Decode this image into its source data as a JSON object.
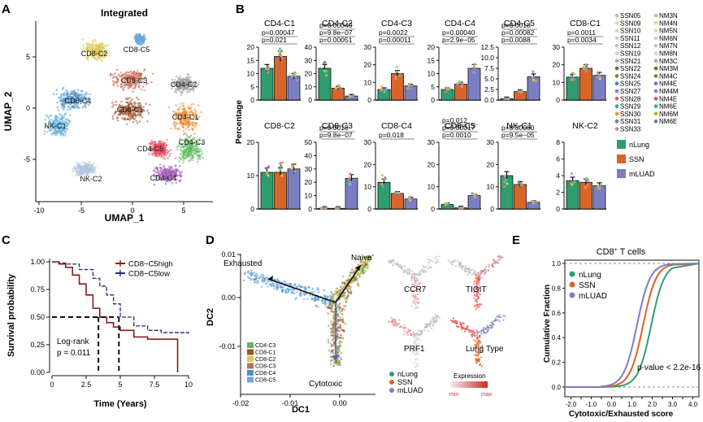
{
  "panels": {
    "A": {
      "letter": "A",
      "title": "Integrated",
      "xlabel": "UMAP_1",
      "ylabel": "UMAP_2",
      "xticks": [
        "-10",
        "-5",
        "0",
        "5"
      ],
      "yticks": [
        "5",
        "0",
        "-5"
      ],
      "clusters": [
        {
          "label": "CD8-C2",
          "color": "#d9c94c"
        },
        {
          "label": "CD8-C5",
          "color": "#6fa8dc"
        },
        {
          "label": "CD8-C3",
          "color": "#c8684c"
        },
        {
          "label": "CD4-C2",
          "color": "#9a9a9a"
        },
        {
          "label": "CD8-C4",
          "color": "#4a90c8"
        },
        {
          "label": "CD8-C1",
          "color": "#a0522d"
        },
        {
          "label": "CD4-C1",
          "color": "#f08a30"
        },
        {
          "label": "NK-C1",
          "color": "#62b0d8"
        },
        {
          "label": "CD4-C5",
          "color": "#e84a5f"
        },
        {
          "label": "CD4-C3",
          "color": "#5cb85c"
        },
        {
          "label": "NK-C2",
          "color": "#b0c4de"
        },
        {
          "label": "CD4-C4",
          "color": "#9b59b6"
        }
      ]
    },
    "B": {
      "letter": "B",
      "ylabel": "Percentage",
      "group_colors": {
        "nLung": "#2e9e6e",
        "SSN": "#d9642a",
        "mLUAD": "#7b7ec2"
      },
      "legend_groups": [
        "nLung",
        "SSN",
        "mLUAD"
      ],
      "samples": [
        "SSN05",
        "SSN09",
        "SSN10",
        "SSN11",
        "SSN12",
        "SSN19",
        "SSN21",
        "SSN22",
        "SSN24",
        "SSN25",
        "SSN27",
        "SSN28",
        "SSN29",
        "SSN30",
        "SSN31",
        "SSN33",
        "NM3N",
        "NM4N",
        "NM5N",
        "NM6N",
        "NM7N",
        "NM8N",
        "NM3C",
        "NM3M",
        "NM4C",
        "NM4E",
        "NM4M",
        "NM4E",
        "NM6E",
        "NM6M",
        "NM6E"
      ],
      "subpanels": [
        {
          "title": "CD4-C1",
          "yticks": [
            "0",
            "5",
            "10",
            "15",
            "20"
          ],
          "ymax": 20,
          "values": [
            12,
            16.5,
            9
          ],
          "pvals": [
            "p=0.00047",
            "p=0.021"
          ]
        },
        {
          "title": "CD4-C2",
          "yticks": [
            "0",
            "10",
            "20",
            "30",
            "40"
          ],
          "ymax": 40,
          "values": [
            24,
            9,
            3
          ],
          "pvals": [
            "p=0.00040",
            "p=9.8e−07",
            "p=0.00051"
          ]
        },
        {
          "title": "CD4-C3",
          "yticks": [
            "0",
            "10",
            "20",
            "30"
          ],
          "ymax": 30,
          "values": [
            6,
            15,
            8
          ],
          "pvals": [
            "p=0.0022",
            "p=0.00011"
          ]
        },
        {
          "title": "CD4-C4",
          "yticks": [
            "0",
            "5",
            "10",
            "15",
            "20"
          ],
          "ymax": 20,
          "values": [
            4,
            6,
            12
          ],
          "pvals": [
            "p=0.00040",
            "p=2.9e−05"
          ]
        },
        {
          "title": "CD4-C5",
          "yticks": [
            "0.0",
            "2.5",
            "5.0",
            "7.5",
            "10.0",
            "12.5"
          ],
          "ymax": 12.5,
          "values": [
            0.3,
            2,
            5.5
          ],
          "pvals": [
            "p=0.0018",
            "p=0.00082",
            "p=0.0088"
          ]
        },
        {
          "title": "CD8-C1",
          "yticks": [
            "0",
            "10",
            "20",
            "30"
          ],
          "ymax": 30,
          "values": [
            13,
            18,
            14
          ],
          "pvals": [
            "p=0.0011",
            "p=0.0034"
          ]
        },
        {
          "title": "CD8-C2",
          "yticks": [
            "0",
            "10",
            "20"
          ],
          "ymax": 20,
          "values": [
            11,
            11,
            12
          ],
          "pvals": []
        },
        {
          "title": "CD8-C3",
          "yticks": [
            "0",
            "10",
            "20",
            "30",
            "40",
            "50"
          ],
          "ymax": 50,
          "values": [
            0.5,
            0.5,
            23
          ],
          "pvals": [
            "p=0.0018",
            "p=9.8e−07"
          ]
        },
        {
          "title": "CD8-C4",
          "yticks": [
            "0",
            "10",
            "20",
            "30"
          ],
          "ymax": 30,
          "values": [
            12,
            7,
            4.5
          ],
          "pvals": [
            "p=0.018"
          ]
        },
        {
          "title": "CD8-C5",
          "yticks": [
            "0",
            "10",
            "20",
            "30"
          ],
          "ymax": 30,
          "values": [
            2,
            0.5,
            6
          ],
          "pvals": [
            "p=0.012",
            "p=0.00017",
            "p=0.0010"
          ]
        },
        {
          "title": "NK-C1",
          "yticks": [
            "0",
            "10",
            "20",
            "30"
          ],
          "ymax": 30,
          "values": [
            15,
            11,
            3
          ],
          "pvals": [
            "p=0.00080",
            "p=9.5e−05"
          ]
        },
        {
          "title": "NK-C2",
          "yticks": [
            "0",
            "2",
            "4",
            "6",
            "8"
          ],
          "ymax": 8,
          "values": [
            3.4,
            3.2,
            2.8
          ],
          "pvals": []
        }
      ]
    },
    "C": {
      "letter": "C",
      "ylabel": "Survival probability",
      "xlabel": "Time (Years)",
      "xticks": [
        "0",
        "2.5",
        "5",
        "7.5",
        "10"
      ],
      "yticks": [
        "1.00",
        "0.75",
        "0.50",
        "0.25",
        "0.00"
      ],
      "legend": [
        {
          "label": "CD8−C5high",
          "color": "#8b1a1a"
        },
        {
          "label": "CD8−C5low",
          "color": "#1f2a6e"
        }
      ],
      "stat_line1": "Log-rank",
      "stat_line2": "p = 0.011",
      "high": [
        [
          0,
          1
        ],
        [
          0.5,
          0.98
        ],
        [
          1,
          0.95
        ],
        [
          1.5,
          0.88
        ],
        [
          2,
          0.8
        ],
        [
          2.5,
          0.7
        ],
        [
          3,
          0.58
        ],
        [
          3.5,
          0.5
        ],
        [
          4,
          0.45
        ],
        [
          4.5,
          0.41
        ],
        [
          5,
          0.38
        ],
        [
          6,
          0.32
        ],
        [
          7,
          0.3
        ],
        [
          9,
          0.3
        ],
        [
          9.2,
          0
        ]
      ],
      "low": [
        [
          0,
          1
        ],
        [
          0.5,
          0.99
        ],
        [
          1,
          0.98
        ],
        [
          2,
          0.93
        ],
        [
          3,
          0.85
        ],
        [
          3.5,
          0.78
        ],
        [
          4,
          0.7
        ],
        [
          4.5,
          0.62
        ],
        [
          5,
          0.5
        ],
        [
          6,
          0.42
        ],
        [
          7,
          0.38
        ],
        [
          8,
          0.36
        ],
        [
          10,
          0.35
        ]
      ],
      "medians": [
        3.4,
        4.9
      ]
    },
    "D": {
      "letter": "D",
      "xlabel": "DC1",
      "ylabel": "DC2",
      "xticks": [
        "-0.02",
        "-0.01",
        "0.00"
      ],
      "yticks": [
        "0.01",
        "0.00",
        "-0.01"
      ],
      "annot": {
        "exhausted": "Exhausted",
        "naive": "Naive",
        "cytotoxic": "Cytotoxic"
      },
      "clusters": [
        {
          "label": "CD4-C3",
          "color": "#5cb85c"
        },
        {
          "label": "CD8-C1",
          "color": "#a0522d"
        },
        {
          "label": "CD8-C2",
          "color": "#d9c94c"
        },
        {
          "label": "CD8-C3",
          "color": "#c8684c"
        },
        {
          "label": "CD8-C4",
          "color": "#4a90c8"
        },
        {
          "label": "CD8-C5",
          "color": "#6fa8dc"
        }
      ],
      "small": [
        "CCR7",
        "TIGIT",
        "PRF1",
        "Lung Type"
      ],
      "group_legend": [
        {
          "label": "nLung",
          "color": "#2e9e6e"
        },
        {
          "label": "SSN",
          "color": "#d9642a"
        },
        {
          "label": "mLUAD",
          "color": "#7b7ec2"
        }
      ],
      "expr_title": "Expression",
      "expr_min": "min",
      "expr_max": "max"
    },
    "E": {
      "letter": "E",
      "title_main": "CD8",
      "title_sup": "+",
      "title_rest": " T cells",
      "ylabel": "Cumulative Fraction",
      "xlabel": "Cytotoxic/Exhausted score",
      "xticks": [
        "-2.0",
        "-1.5",
        "-1.0",
        "-0.5",
        "0.0",
        "0.5",
        "1.0",
        "1.5",
        "2.0",
        "2.5",
        "3.0",
        "3.5",
        "4.0"
      ],
      "yticks": [
        "1.0",
        "0.8",
        "0.6",
        "0.4",
        "0.2",
        "0.0"
      ],
      "pval": "p-value < 2.2e-16",
      "legend": [
        {
          "label": "nLung",
          "color": "#2e9e6e"
        },
        {
          "label": "SSN",
          "color": "#d9642a"
        },
        {
          "label": "mLUAD",
          "color": "#7b7ec2"
        }
      ],
      "curve_centers": [
        1.95,
        1.55,
        1.25
      ]
    }
  }
}
